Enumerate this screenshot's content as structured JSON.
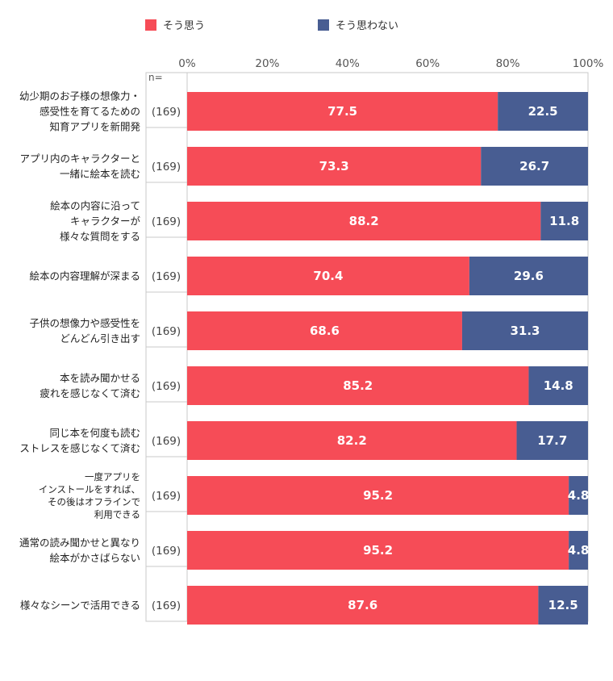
{
  "colors": {
    "agree": "#f64c57",
    "disagree": "#485d92",
    "frame": "#c9c9c9"
  },
  "n_label": "n=",
  "chart_data": {
    "type": "bar",
    "orientation": "horizontal",
    "stacked": true,
    "percent_stacked": true,
    "xlim": [
      0,
      100
    ],
    "x_ticks": [
      "0%",
      "20%",
      "40%",
      "60%",
      "80%",
      "100%"
    ],
    "legend_position": "top",
    "categories": [
      [
        "幼少期のお子様の想像力・",
        "感受性を育てるための",
        "知育アプリを新開発"
      ],
      [
        "アプリ内のキャラクターと",
        "一緒に絵本を読む"
      ],
      [
        "絵本の内容に沿って",
        "キャラクターが",
        "様々な質問をする"
      ],
      [
        "絵本の内容理解が深まる"
      ],
      [
        "子供の想像力や感受性を",
        "どんどん引き出す"
      ],
      [
        "本を読み聞かせる",
        "疲れを感じなくて済む"
      ],
      [
        "同じ本を何度も読む",
        "ストレスを感じなくて済む"
      ],
      [
        "一度アプリを",
        "インストールをすれば、",
        "その後はオフラインで",
        "利用できる"
      ],
      [
        "通常の読み聞かせと異なり",
        "絵本がかさばらない"
      ],
      [
        "様々なシーンで活用できる"
      ]
    ],
    "counts": [
      "(169)",
      "(169)",
      "(169)",
      "(169)",
      "(169)",
      "(169)",
      "(169)",
      "(169)",
      "(169)",
      "(169)"
    ],
    "series": [
      {
        "name": "そう思う",
        "color": "#f64c57",
        "values": [
          77.5,
          73.3,
          88.2,
          70.4,
          68.6,
          85.2,
          82.2,
          95.2,
          95.2,
          87.6
        ]
      },
      {
        "name": "そう思わない",
        "color": "#485d92",
        "values": [
          22.5,
          26.7,
          11.8,
          29.6,
          31.3,
          14.8,
          17.7,
          4.8,
          4.8,
          12.5
        ]
      }
    ]
  }
}
